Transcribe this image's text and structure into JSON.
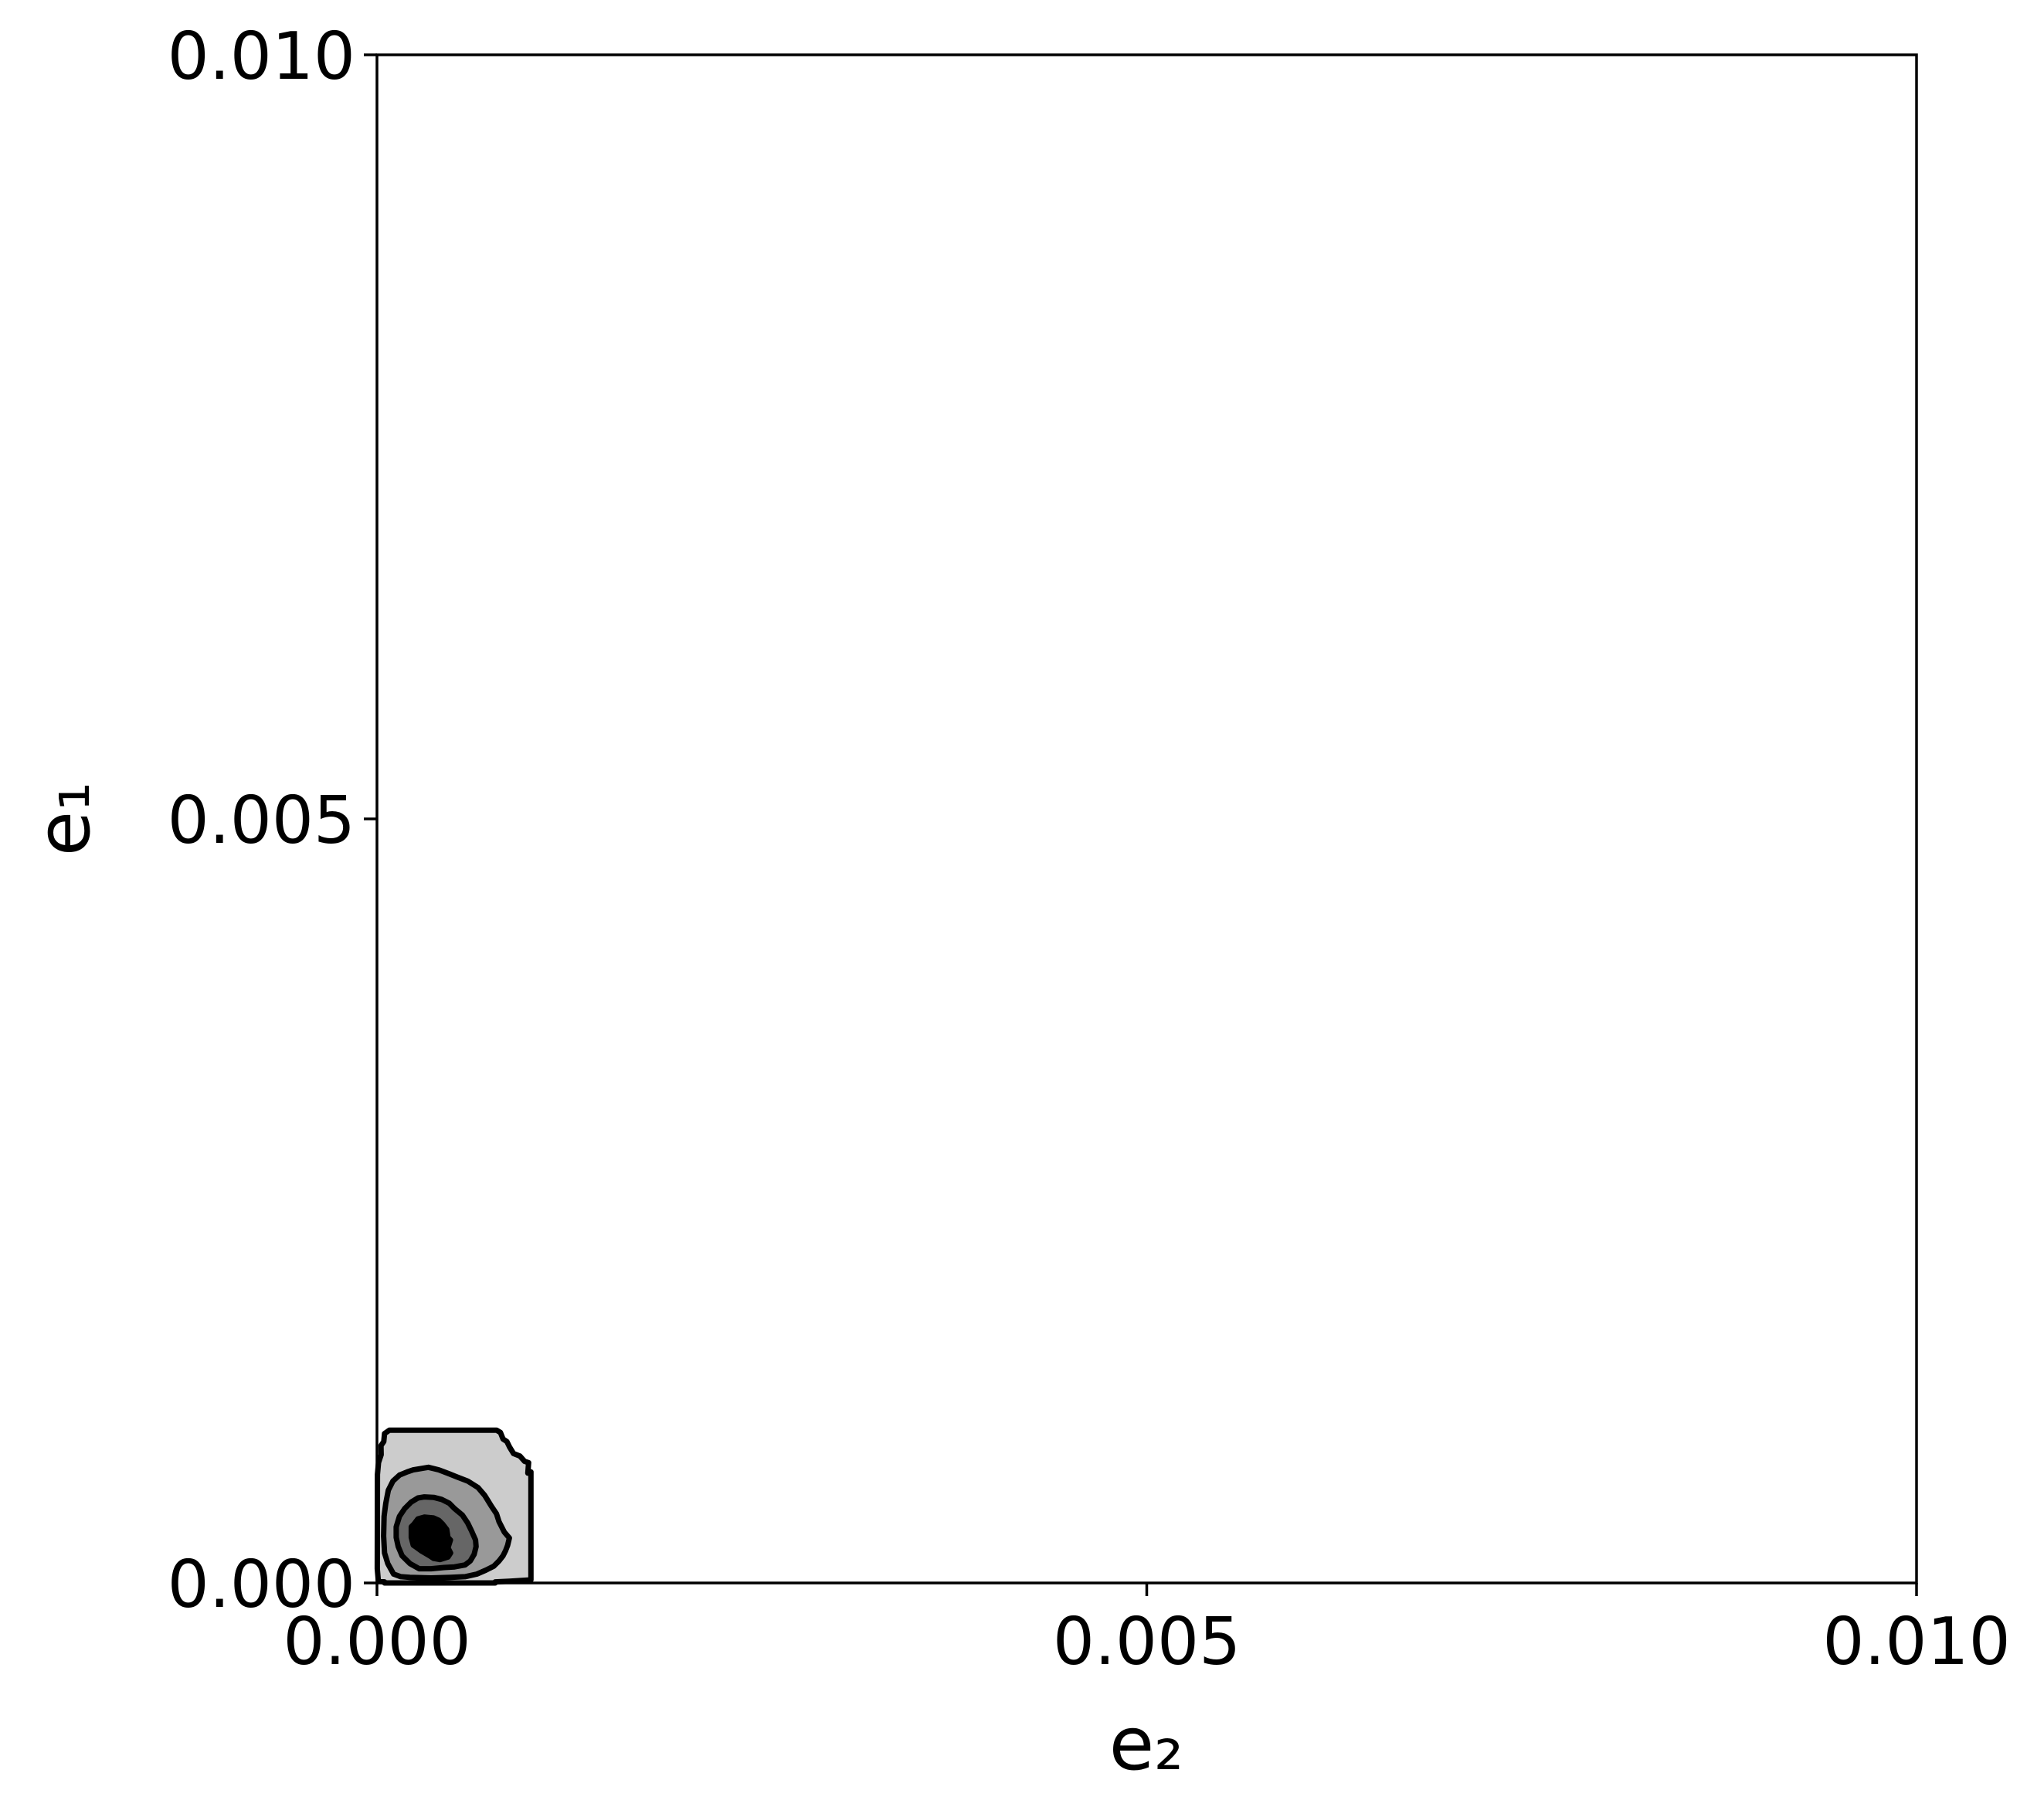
{
  "chart_data": {
    "type": "contour",
    "xlabel": "e₂",
    "ylabel": "e₁",
    "xlim": [
      0,
      0.01
    ],
    "ylim": [
      0,
      0.01
    ],
    "xticks": [
      {
        "value": 0,
        "label": "0.000"
      },
      0.005,
      {
        "value": 0.01,
        "label": "0.010"
      }
    ],
    "yticks": [
      {
        "value": 0,
        "label": "0.000"
      },
      0.005,
      {
        "value": 0.01,
        "label": "0.010"
      }
    ],
    "grid": true,
    "line_color": "#000000",
    "regions": [
      {
        "color": "#cccccc",
        "x": [
          8.1e-05,
          4.9e-05,
          4.4e-05,
          2.6e-05,
          2.7e-05,
          1e-05,
          3e-06,
          2e-06,
          9e-06,
          4.9e-05,
          4.9e-05,
          0.000768,
          0.000768,
          0.000861,
          0.001,
          0.001,
          0.00098,
          0.000985,
          0.000959,
          0.000929,
          0.000887,
          0.000861,
          0.000844,
          0.000819,
          0.000802,
          0.000776
        ],
        "y": [
          0.001,
          0.000978,
          0.000925,
          0.000899,
          0.000839,
          0.000787,
          0.00071,
          9.3e-05,
          1.1e-05,
          7e-06,
          0,
          0,
          7e-06,
          1.1e-05,
          2e-05,
          0.000727,
          0.000719,
          0.000787,
          0.000796,
          0.00083,
          0.000847,
          0.00089,
          0.000925,
          0.000942,
          0.000985,
          0.001
        ]
      },
      {
        "color": "#999999",
        "x": [
          0.000236,
          0.000334,
          0.000402,
          0.00047,
          0.000521,
          0.000589,
          0.000657,
          0.0007,
          0.000742,
          0.000776,
          0.000793,
          0.000827,
          0.00086,
          0.000849,
          0.000836,
          0.000819,
          0.000793,
          0.000759,
          0.000708,
          0.000649,
          0.000572,
          0.000478,
          0.000351,
          0.000214,
          0.000155,
          0.000108,
          7e-05,
          4.9e-05,
          4.3e-05,
          4.6e-05,
          5.7e-05,
          7.4e-05,
          0.000104,
          0.000146,
          0.000197
        ],
        "y": [
          0.00074,
          0.000757,
          0.00074,
          0.000714,
          0.000693,
          0.000667,
          0.000624,
          0.000573,
          0.000504,
          0.000453,
          0.000401,
          0.000333,
          0.000294,
          0.000247,
          0.000213,
          0.000178,
          0.000144,
          0.00011,
          8.4e-05,
          5.8e-05,
          4.1e-05,
          3.7e-05,
          3.3e-05,
          3.7e-05,
          4.1e-05,
          5.8e-05,
          0.000127,
          0.000196,
          0.000307,
          0.000436,
          0.000521,
          0.000607,
          0.000667,
          0.000706,
          0.000727
        ]
      },
      {
        "color": "#666666",
        "x": [
          0.000266,
          0.000308,
          0.000368,
          0.000419,
          0.00047,
          0.000504,
          0.000555,
          0.000589,
          0.000614,
          0.00064,
          0.000644,
          0.000631,
          0.000606,
          0.000572,
          0.000504,
          0.000436,
          0.000351,
          0.000274,
          0.000214,
          0.000163,
          0.000138,
          0.000125,
          0.000125,
          0.000146,
          0.00018,
          0.000223
        ],
        "y": [
          0.000556,
          0.000563,
          0.00056,
          0.000547,
          0.000521,
          0.000487,
          0.000444,
          0.000393,
          0.000341,
          0.000281,
          0.000238,
          0.000187,
          0.000144,
          0.000118,
          0.000105,
          0.000101,
          9.3e-05,
          9.3e-05,
          0.000127,
          0.000178,
          0.000238,
          0.000298,
          0.000367,
          0.000436,
          0.000487,
          0.00053
        ]
      },
      {
        "color": "#000000",
        "x": [
          0.000266,
          0.000308,
          0.000368,
          0.000402,
          0.000427,
          0.000453,
          0.000461,
          0.000477,
          0.000461,
          0.000478,
          0.000461,
          0.00041,
          0.000368,
          0.000342,
          0.000291,
          0.000261,
          0.000236,
          0.000223,
          0.000223,
          0.00024
        ],
        "y": [
          0.000419,
          0.000431,
          0.000425,
          0.00041,
          0.000384,
          0.00035,
          0.000298,
          0.000281,
          0.00023,
          0.000196,
          0.00017,
          0.000153,
          0.000161,
          0.000178,
          0.000208,
          0.00023,
          0.000247,
          0.000298,
          0.000367,
          0.000384
        ]
      }
    ]
  }
}
